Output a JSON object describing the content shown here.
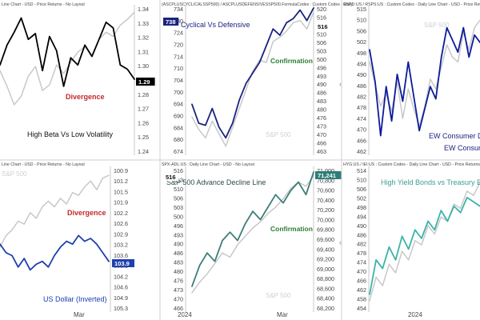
{
  "chart_data": [
    {
      "type": "line",
      "header": "Line Chart - USD - Price Returns - No Layout",
      "y_ticks": [
        "1.34",
        "1.33",
        "1.32",
        "1.31",
        "1.30",
        "1.29",
        "1.28",
        "1.27",
        "1.26",
        "1.25",
        "1.24"
      ],
      "last_value": "1.29",
      "x_tick_labels": [],
      "annotations": [
        "Divergence",
        "High Beta Vs Low Volatility"
      ],
      "ylim": [
        1.24,
        1.34
      ],
      "series": [
        {
          "values": [
            1.3,
            1.314,
            1.323,
            1.333,
            1.318,
            1.322,
            1.296,
            1.32,
            1.31,
            1.285,
            1.305,
            1.3,
            1.314,
            1.306,
            1.318,
            1.33,
            1.326,
            1.3,
            1.297,
            1.29
          ],
          "color": "#000000",
          "width": 1.8
        },
        {
          "values": [
            1.296,
            1.285,
            1.272,
            1.278,
            1.292,
            1.299,
            1.282,
            1.286,
            1.3,
            1.294,
            1.302,
            1.309,
            1.313,
            1.306,
            1.318,
            1.323,
            1.32,
            1.328,
            1.332,
            1.337
          ],
          "color": "#c8c8c8",
          "width": 1.5
        }
      ]
    },
    {
      "type": "line",
      "header": "(ASCPLUSCYCLICALSSP500) / ASCPLUSDEFENSIVESSP500.FormulaCodes : Custom Codes - Daily",
      "y_ticks_left": [
        "734",
        "730",
        "724",
        "720",
        "714",
        "710",
        "704",
        "700",
        "694",
        "690",
        "684",
        "680",
        "674"
      ],
      "y_ticks_right": [
        "520",
        "516",
        "513",
        "510",
        "506",
        "503",
        "500",
        "496",
        "493",
        "490",
        "486",
        "483",
        "480",
        "476",
        "473",
        "470",
        "466",
        "463"
      ],
      "last_value_left": "738",
      "last_value_right": "516",
      "x_tick_labels": [],
      "annotations": [
        "Cyclical Vs Defensive",
        "Confirmation",
        "S&P 500"
      ],
      "ylim": [
        670,
        738
      ],
      "series": [
        {
          "values": [
            692,
            683,
            682,
            690,
            681,
            676,
            683,
            694,
            702,
            707,
            712,
            720,
            728,
            725,
            731,
            733,
            737,
            732,
            738
          ],
          "color": "#1a237e",
          "width": 1.8
        },
        {
          "values": [
            686,
            680,
            676,
            684,
            678,
            672,
            681,
            690,
            699,
            708,
            713,
            712,
            722,
            724,
            727,
            731,
            732,
            728,
            736
          ],
          "color": "#c8c8c8",
          "width": 1.5
        }
      ]
    },
    {
      "type": "line",
      "header": "RSPD:US / RSPS:US : Custom Codes - Daily Line Chart - USD - Price Returns - No Layout",
      "y_ticks": [
        "515",
        "510",
        "506",
        "502",
        "498",
        "494",
        "490",
        "486",
        "482",
        "478",
        "474",
        "470",
        "466",
        "462"
      ],
      "x_tick_labels": [],
      "annotations": [
        "S&P 500",
        "EW Consumer D",
        "EW Consum"
      ],
      "ylim": [
        462,
        520
      ],
      "series": [
        {
          "values": [
            503,
            490,
            468,
            488,
            474,
            493,
            482,
            498,
            484,
            470,
            479,
            488,
            483,
            500,
            512,
            507,
            502,
            512,
            500,
            509,
            506
          ],
          "color": "#0d1b9a",
          "width": 1.8
        },
        {
          "values": [
            498,
            489,
            480,
            485,
            478,
            490,
            475,
            487,
            479,
            472,
            480,
            491,
            487,
            496,
            505,
            500,
            498,
            510,
            503,
            512,
            515
          ],
          "color": "#c8c8c8",
          "width": 1.5
        }
      ]
    },
    {
      "type": "line",
      "header": "Line Chart - USD - Price Returns - No Layout",
      "y_ticks": [
        "100.9",
        "101.2",
        "101.5",
        "101.9",
        "102.2",
        "102.6",
        "102.9",
        "103.2",
        "103.6",
        "103.9",
        "104.2",
        "104.6",
        "104.9",
        "105.3"
      ],
      "last_value": "103.9",
      "x_tick_labels": [
        "Mar"
      ],
      "annotations": [
        "S&P 500",
        "Divergence",
        "US Dollar (Inverted)"
      ],
      "ylim": [
        105.5,
        100.7
      ],
      "series": [
        {
          "values": [
            103.3,
            103.6,
            103.7,
            104.1,
            103.8,
            104.2,
            104.0,
            103.9,
            104.1,
            103.7,
            103.4,
            103.2,
            103.3,
            103.0,
            103.2,
            103.1,
            103.3,
            103.6,
            103.9
          ],
          "color": "#1e40af",
          "width": 1.8
        },
        {
          "values": [
            103.4,
            103.0,
            102.8,
            102.5,
            102.6,
            102.2,
            102.4,
            102.0,
            101.8,
            102.0,
            101.7,
            101.9,
            101.5,
            101.6,
            101.3,
            101.1,
            101.4,
            101.0,
            100.9
          ],
          "color": "#c8c8c8",
          "width": 1.5
        }
      ]
    },
    {
      "type": "line",
      "header": "SPX-ADL:US : Daily Line Chart - USD - No Layout",
      "y_ticks_left": [
        "516",
        "513",
        "510",
        "506",
        "503",
        "500",
        "496",
        "493",
        "490",
        "486",
        "483",
        "480",
        "476",
        "473",
        "470",
        "466"
      ],
      "y_ticks_right": [
        "71,000",
        "70,800",
        "70,600",
        "70,400",
        "70,200",
        "70,000",
        "69,800",
        "69,600",
        "69,400",
        "69,200",
        "69,000",
        "68,800",
        "68,600",
        "68,400",
        "68,200"
      ],
      "last_value_left": "516",
      "last_value_right": "71,241",
      "x_tick_labels": [
        "2024",
        "Mar"
      ],
      "annotations": [
        "S&P 500 Advance Decline Line",
        "Confirmation",
        "S&P 500"
      ],
      "ylim": [
        68000,
        71300
      ],
      "series": [
        {
          "values": [
            68500,
            69000,
            69300,
            69100,
            69600,
            69800,
            69600,
            70000,
            70300,
            70100,
            70400,
            70700,
            70500,
            70800,
            71000,
            70700,
            71241
          ],
          "color": "#3e7d7a",
          "width": 1.8
        },
        {
          "values": [
            68350,
            68600,
            68800,
            69050,
            69300,
            69200,
            69500,
            69700,
            69900,
            70050,
            70250,
            70400,
            70600,
            70850,
            71000,
            70900,
            71150
          ],
          "color": "#c8c8c8",
          "width": 1.5
        }
      ]
    },
    {
      "type": "line",
      "header": "HYG:US / IEI:US : Custom Codes - Daily Line Chart - USD - Price Returns",
      "y_ticks": [
        "514",
        "510",
        "506",
        "502",
        "498",
        "494",
        "490",
        "486",
        "482",
        "478",
        "474",
        "470",
        "466",
        "462",
        "458",
        "454"
      ],
      "x_tick_labels": [
        "2024"
      ],
      "annotations": [
        "High Yield Bonds vs Treasury Bo"
      ],
      "ylim": [
        452,
        516
      ],
      "series": [
        {
          "values": [
            458,
            474,
            470,
            480,
            474,
            485,
            479,
            488,
            484,
            492,
            488,
            497,
            492,
            499,
            496,
            503,
            501,
            499
          ],
          "color": "#3cb4a8",
          "width": 1.8
        },
        {
          "values": [
            455,
            466,
            462,
            472,
            468,
            478,
            474,
            483,
            481,
            490,
            486,
            494,
            492,
            500,
            498,
            506,
            504,
            510
          ],
          "color": "#c8c8c8",
          "width": 1.5
        }
      ]
    }
  ]
}
